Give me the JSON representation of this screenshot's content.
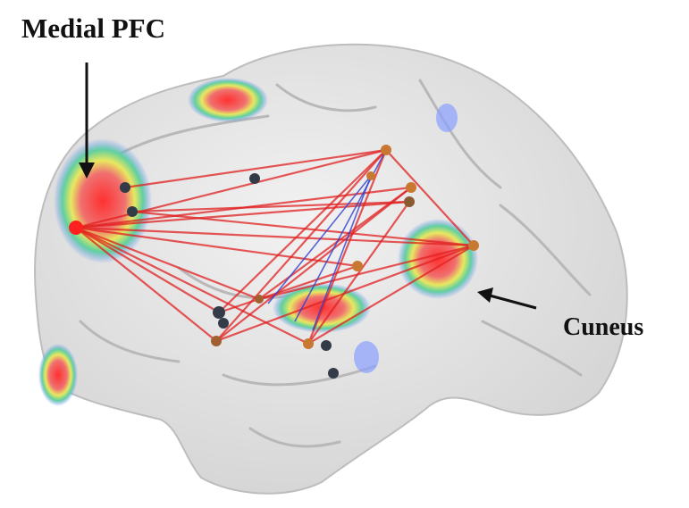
{
  "labels": {
    "region_1": "Medial PFC",
    "region_2": "Cuneus"
  }
}
